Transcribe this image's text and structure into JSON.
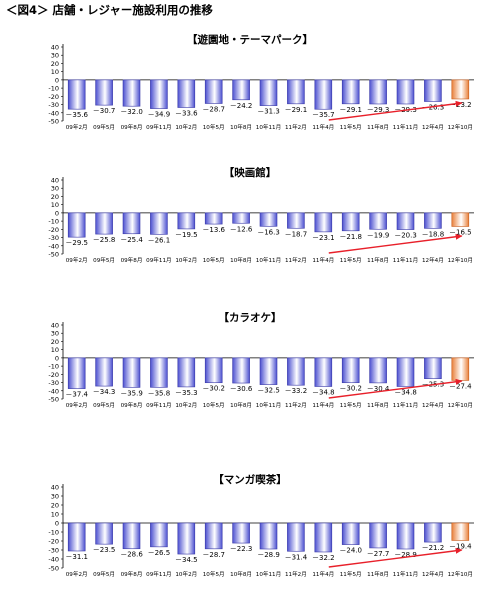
{
  "figure_title": "＜図4＞ 店舗・レジャー施設利用の推移",
  "chart_data": [
    {
      "type": "bar",
      "title": "【遊園地・テーマパーク】",
      "categories": [
        "09年2月",
        "09年5月",
        "09年8月",
        "09年11月",
        "10年2月",
        "10年5月",
        "10年8月",
        "10年11月",
        "11年2月",
        "11年4月",
        "11年5月",
        "11年8月",
        "11年11月",
        "12年4月",
        "12年10月"
      ],
      "values": [
        -35.6,
        -30.7,
        -32.0,
        -34.9,
        -33.6,
        -28.7,
        -24.2,
        -31.3,
        -29.1,
        -35.7,
        -29.1,
        -29.3,
        -29.3,
        -26.3,
        -23.2
      ],
      "value_labels": [
        "－35.6",
        "－30.7",
        "－32.0",
        "－34.9",
        "－33.6",
        "－28.7",
        "－24.2",
        "－31.3",
        "－29.1",
        "－35.7",
        "－29.1",
        "－29.3",
        "－29.3",
        "－26.3",
        "－23.2"
      ],
      "yticks": [
        "40",
        "30",
        "20",
        "10",
        "0",
        "-10",
        "-20",
        "-30",
        "-40",
        "-50"
      ],
      "ylim": [
        -50,
        40
      ],
      "highlight_index": 14,
      "trend_arrow": {
        "from_index": 10,
        "to_index": 14
      }
    },
    {
      "type": "bar",
      "title": "【映画館】",
      "categories": [
        "09年2月",
        "09年5月",
        "09年8月",
        "09年11月",
        "10年2月",
        "10年5月",
        "10年8月",
        "10年11月",
        "11年2月",
        "11年4月",
        "11年5月",
        "11年8月",
        "11年11月",
        "12年4月",
        "12年10月"
      ],
      "values": [
        -29.5,
        -25.8,
        -25.4,
        -26.1,
        -19.5,
        -13.6,
        -12.6,
        -16.3,
        -18.7,
        -23.1,
        -21.8,
        -19.9,
        -20.3,
        -18.8,
        -16.5
      ],
      "value_labels": [
        "－29.5",
        "－25.8",
        "－25.4",
        "－26.1",
        "－19.5",
        "－13.6",
        "－12.6",
        "－16.3",
        "－18.7",
        "－23.1",
        "－21.8",
        "－19.9",
        "－20.3",
        "－18.8",
        "－16.5"
      ],
      "yticks": [
        "40",
        "30",
        "20",
        "10",
        "0",
        "-10",
        "-20",
        "-30",
        "-40",
        "-50"
      ],
      "ylim": [
        -50,
        40
      ],
      "highlight_index": 14,
      "trend_arrow": {
        "from_index": 10,
        "to_index": 14
      }
    },
    {
      "type": "bar",
      "title": "【カラオケ】",
      "categories": [
        "09年2月",
        "09年5月",
        "09年8月",
        "09年11月",
        "10年2月",
        "10年5月",
        "10年8月",
        "10年11月",
        "11年2月",
        "11年4月",
        "11年5月",
        "11年8月",
        "11年11月",
        "12年4月",
        "12年10月"
      ],
      "values": [
        -37.4,
        -34.3,
        -35.9,
        -35.8,
        -35.3,
        -30.2,
        -30.6,
        -32.5,
        -33.2,
        -34.8,
        -30.2,
        -30.4,
        -34.8,
        -25.3,
        -27.4
      ],
      "value_labels": [
        "－37.4",
        "－34.3",
        "－35.9",
        "－35.8",
        "－35.3",
        "－30.2",
        "－30.6",
        "－32.5",
        "－33.2",
        "－34.8",
        "－30.2",
        "－30.4",
        "－34.8",
        "－25.3",
        "－27.4"
      ],
      "yticks": [
        "40",
        "30",
        "20",
        "10",
        "0",
        "-10",
        "-20",
        "-30",
        "-40",
        "-50"
      ],
      "ylim": [
        -50,
        40
      ],
      "highlight_index": 14,
      "trend_arrow": {
        "from_index": 10,
        "to_index": 14
      }
    },
    {
      "type": "bar",
      "title": "【マンガ喫茶】",
      "categories": [
        "09年2月",
        "09年5月",
        "09年8月",
        "09年11月",
        "10年2月",
        "10年5月",
        "10年8月",
        "10年11月",
        "11年2月",
        "11年4月",
        "11年5月",
        "11年8月",
        "11年11月",
        "12年4月",
        "12年10月"
      ],
      "values": [
        -31.1,
        -23.5,
        -28.6,
        -26.5,
        -34.5,
        -28.7,
        -22.3,
        -28.9,
        -31.4,
        -32.2,
        -24.0,
        -27.7,
        -28.9,
        -21.2,
        -19.4
      ],
      "value_labels": [
        "－31.1",
        "－23.5",
        "－28.6",
        "－26.5",
        "－34.5",
        "－28.7",
        "－22.3",
        "－28.9",
        "－31.4",
        "－32.2",
        "－24.0",
        "－27.7",
        "－28.9",
        "－21.2",
        "－19.4"
      ],
      "yticks": [
        "40",
        "30",
        "20",
        "10",
        "0",
        "-10",
        "-20",
        "-30",
        "-40",
        "-50"
      ],
      "ylim": [
        -50,
        40
      ],
      "highlight_index": 14,
      "trend_arrow": {
        "from_index": 10,
        "to_index": 14
      }
    }
  ],
  "colors": {
    "bar_dark": "#4b4fd0",
    "bar_light": "#ffffff",
    "bar_border": "#3a3aa8",
    "highlight_dark": "#e8803a",
    "highlight_light": "#ffffff",
    "highlight_border": "#c85a1a",
    "axis": "#000000",
    "zero_line": "#000000",
    "arrow": "#e8202a"
  }
}
